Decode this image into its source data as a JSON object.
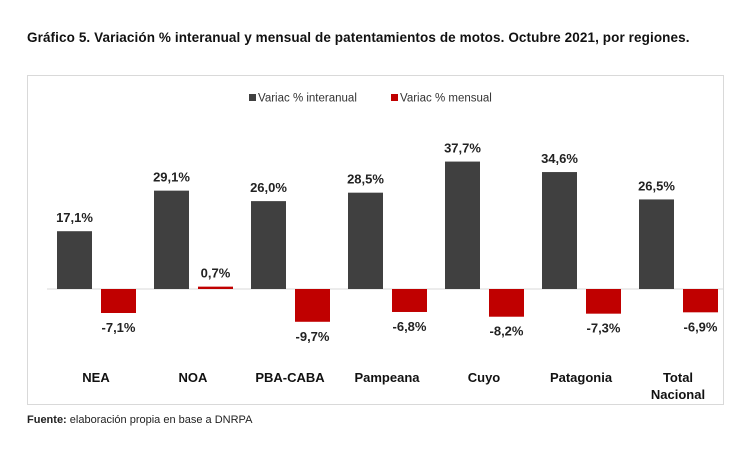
{
  "chart_data": {
    "type": "bar",
    "title": "Gráfico 5. Variación % interanual y mensual de patentamientos de motos. Octubre 2021, por regiones.",
    "categories": [
      "NEA",
      "NOA",
      "PBA-CABA",
      "Pampeana",
      "Cuyo",
      "Patagonia",
      "Total Nacional"
    ],
    "series": [
      {
        "name": "Variac % interanual",
        "color": "#404040",
        "values": [
          17.1,
          29.1,
          26.0,
          28.5,
          37.7,
          34.6,
          26.5
        ],
        "labels": [
          "17,1%",
          "29,1%",
          "26,0%",
          "28,5%",
          "37,7%",
          "34,6%",
          "26,5%"
        ]
      },
      {
        "name": "Variac % mensual",
        "color": "#c00000",
        "values": [
          -7.1,
          0.7,
          -9.7,
          -6.8,
          -8.2,
          -7.3,
          -6.9
        ],
        "labels": [
          "-7,1%",
          "0,7%",
          "-9,7%",
          "-6,8%",
          "-8,2%",
          "-7,3%",
          "-6,9%"
        ]
      }
    ],
    "legend": "top",
    "grid": false,
    "xlabel": "",
    "ylabel": ""
  },
  "source": {
    "label": "Fuente:",
    "text": " elaboración propia en base a DNRPA"
  }
}
